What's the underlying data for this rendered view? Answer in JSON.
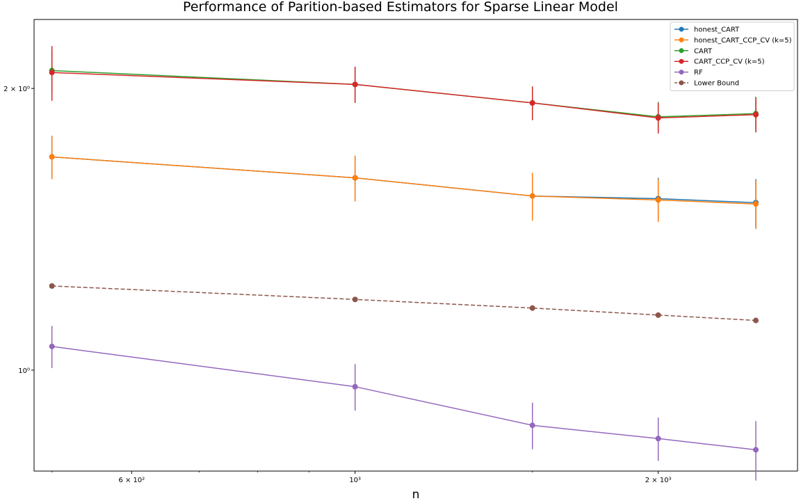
{
  "chart_data": {
    "type": "line",
    "title": "Performance of Parition-based Estimators for Sparse Linear Model",
    "xlabel": "n",
    "ylabel": "",
    "x_scale": "log",
    "y_scale": "log",
    "xlim": [
      480,
      2750
    ],
    "ylim": [
      0.78,
      2.37
    ],
    "grid": false,
    "legend_position": "top-right",
    "x_ticks": [
      {
        "value": 600,
        "label": "6 × 10²"
      },
      {
        "value": 1000,
        "label": "10³"
      },
      {
        "value": 2000,
        "label": "2 × 10³"
      }
    ],
    "y_ticks": [
      {
        "value": 1,
        "label": "10⁰"
      },
      {
        "value": 2,
        "label": "2 × 10⁰"
      }
    ],
    "x": [
      500,
      1000,
      1500,
      2000,
      2500
    ],
    "series": [
      {
        "name": "honest_CART",
        "color": "#1f77b4",
        "marker": "o",
        "dash": false,
        "values": [
          1.69,
          1.605,
          1.535,
          1.525,
          1.51
        ],
        "err": [
          0.09,
          0.09,
          0.09,
          0.08,
          0.09
        ]
      },
      {
        "name": "honest_CART_CCP_CV (k=5)",
        "color": "#ff7f0e",
        "marker": "o",
        "dash": false,
        "values": [
          1.69,
          1.605,
          1.535,
          1.52,
          1.505
        ],
        "err": [
          0.09,
          0.09,
          0.09,
          0.08,
          0.09
        ]
      },
      {
        "name": "CART",
        "color": "#2ca02c",
        "marker": "o",
        "dash": false,
        "values": [
          2.09,
          2.02,
          1.93,
          1.865,
          1.88
        ],
        "err": [
          0.11,
          0.09,
          0.08,
          0.07,
          0.08
        ]
      },
      {
        "name": "CART_CCP_CV (k=5)",
        "color": "#d62728",
        "marker": "o",
        "dash": false,
        "values": [
          2.08,
          2.02,
          1.93,
          1.86,
          1.875
        ],
        "err": [
          0.14,
          0.09,
          0.08,
          0.07,
          0.08
        ]
      },
      {
        "name": "RF",
        "color": "#9467bd",
        "marker": "o",
        "dash": false,
        "values": [
          1.06,
          0.96,
          0.873,
          0.845,
          0.822
        ],
        "err": [
          0.055,
          0.055,
          0.05,
          0.045,
          0.06
        ]
      },
      {
        "name": "Lower Bound",
        "color": "#8c564b",
        "marker": "o",
        "dash": true,
        "values": [
          1.23,
          1.19,
          1.165,
          1.145,
          1.13
        ],
        "err": null
      }
    ]
  }
}
